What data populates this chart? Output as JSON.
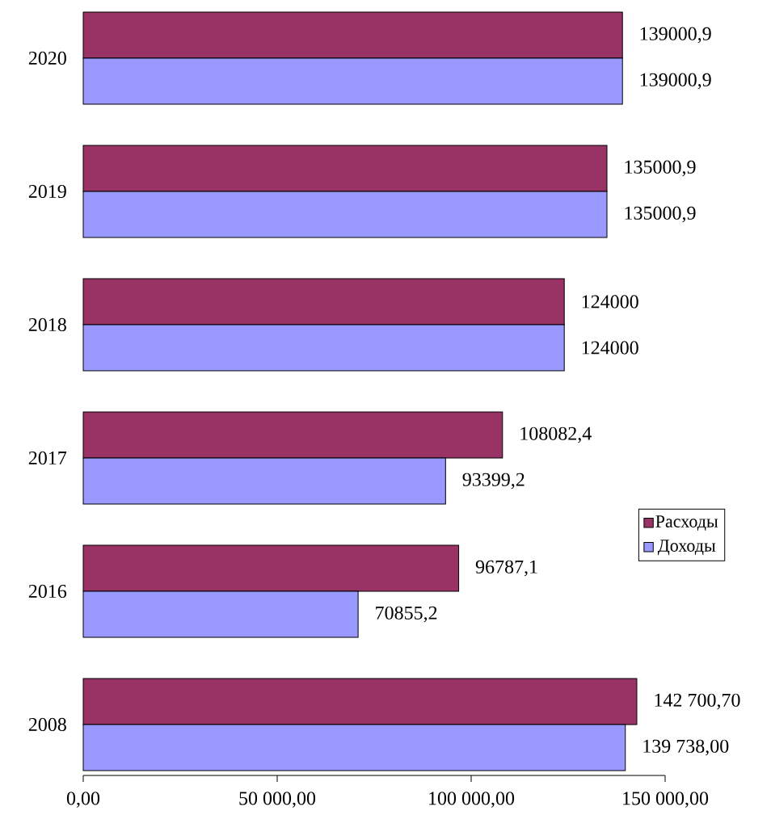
{
  "chart_data": {
    "type": "bar",
    "orientation": "horizontal",
    "categories": [
      "2020",
      "2019",
      "2018",
      "2017",
      "2016",
      "2008"
    ],
    "series": [
      {
        "name": "Расходы",
        "color": "#993366",
        "values": [
          139000.9,
          135000.9,
          124000,
          108082.4,
          96787.1,
          142700.7
        ],
        "value_labels": [
          "139000,9",
          "135000,9",
          "124000",
          "108082,4",
          "96787,1",
          "142 700,70"
        ]
      },
      {
        "name": "Доходы",
        "color": "#9999ff",
        "values": [
          139000.9,
          135000.9,
          124000,
          93399.2,
          70855.2,
          139738.0
        ],
        "value_labels": [
          "139000,9",
          "135000,9",
          "124000",
          "93399,2",
          "70855,2",
          "139 738,00"
        ]
      }
    ],
    "xlim": [
      0,
      150000
    ],
    "xticks": [
      {
        "value": 0,
        "label": "0,00"
      },
      {
        "value": 50000,
        "label": "50 000,00"
      },
      {
        "value": 100000,
        "label": "100 000,00"
      },
      {
        "value": 150000,
        "label": "150 000,00"
      }
    ],
    "legend": "right",
    "grid": false
  }
}
